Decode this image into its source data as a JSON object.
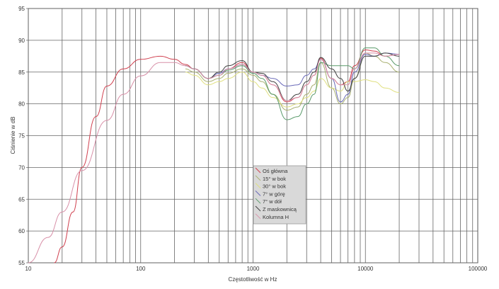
{
  "chart_data": {
    "type": "line",
    "xlabel": "Częstotliwość w Hz",
    "ylabel": "Ciśnienie w dB",
    "x_scale": "log",
    "xlim": [
      10,
      100000
    ],
    "ylim": [
      55,
      95
    ],
    "x_ticks": [
      "10",
      "100",
      "1000",
      "10000",
      "100000"
    ],
    "y_ticks": [
      "55",
      "60",
      "65",
      "70",
      "75",
      "80",
      "85",
      "90",
      "95"
    ],
    "grid": true,
    "legend_placement": "center",
    "series": [
      {
        "name": "Oś główna",
        "color": "#d0404f",
        "x": [
          17,
          20,
          25,
          30,
          40,
          50,
          70,
          100,
          150,
          200,
          250,
          300,
          400,
          500,
          600,
          800,
          1000,
          1200,
          1500,
          2000,
          2500,
          3000,
          3500,
          4000,
          5000,
          6000,
          7000,
          8000,
          10000,
          12000,
          15000,
          20000
        ],
        "y": [
          55,
          57.5,
          63,
          70,
          78,
          82.8,
          85.5,
          87,
          87.5,
          87,
          86.2,
          85.5,
          84,
          84.5,
          85.5,
          86.5,
          85,
          84.5,
          83,
          80.3,
          81,
          83,
          84.5,
          87.2,
          84,
          83,
          83.5,
          86,
          88.5,
          88.3,
          87.5,
          87.8
        ]
      },
      {
        "name": "15° w bok",
        "color": "#a8b070",
        "x": [
          250,
          300,
          400,
          500,
          600,
          800,
          1000,
          1200,
          1500,
          2000,
          2500,
          3000,
          3500,
          4000,
          5000,
          6000,
          7000,
          8000,
          10000,
          12000,
          15000,
          20000
        ],
        "y": [
          85.5,
          85,
          83.5,
          84,
          84.8,
          85.5,
          84.5,
          83.5,
          81.5,
          79,
          79.5,
          81.5,
          83,
          86.5,
          82.5,
          80,
          81,
          84,
          88,
          87.5,
          86.5,
          85
        ]
      },
      {
        "name": "30° w bok",
        "color": "#e0e080",
        "x": [
          250,
          300,
          400,
          500,
          600,
          800,
          1000,
          1200,
          1500,
          2000,
          2500,
          3000,
          3500,
          4000,
          5000,
          6000,
          7000,
          8000,
          10000,
          12000,
          15000,
          20000
        ],
        "y": [
          85,
          84.5,
          83,
          83.5,
          84,
          85,
          83.5,
          82.5,
          81,
          79.5,
          80,
          81,
          82,
          84,
          82.5,
          82,
          83.5,
          83.5,
          83.8,
          83.5,
          82.5,
          81.8
        ]
      },
      {
        "name": "7° w górę",
        "color": "#6a6ab8",
        "x": [
          250,
          300,
          400,
          500,
          600,
          800,
          1000,
          1200,
          1500,
          2000,
          2500,
          3000,
          3500,
          4000,
          5000,
          6000,
          7000,
          8000,
          10000,
          12000,
          15000,
          20000
        ],
        "y": [
          86,
          85.5,
          84,
          84.8,
          85.5,
          86.2,
          85,
          84.5,
          84,
          82.8,
          83,
          84.5,
          85.5,
          87,
          84,
          80.3,
          81.5,
          85,
          87.8,
          87.5,
          88,
          87.8
        ]
      },
      {
        "name": "7° w dół",
        "color": "#5a9a6a",
        "x": [
          250,
          300,
          400,
          500,
          600,
          800,
          1000,
          1200,
          1500,
          2000,
          2500,
          3000,
          3500,
          4000,
          5000,
          6000,
          7000,
          8000,
          10000,
          12000,
          15000,
          20000
        ],
        "y": [
          86,
          85.5,
          84,
          84.5,
          85.3,
          86,
          84.8,
          84,
          81.5,
          77.5,
          78,
          80,
          81.5,
          86.5,
          86,
          86,
          86,
          85.5,
          88.8,
          88.8,
          87.5,
          86
        ]
      },
      {
        "name": "Z maskownicą",
        "color": "#404040",
        "x": [
          250,
          300,
          400,
          500,
          600,
          800,
          1000,
          1200,
          1500,
          2000,
          2500,
          3000,
          3500,
          4000,
          5000,
          6000,
          7000,
          8000,
          10000,
          12000,
          15000,
          20000
        ],
        "y": [
          86,
          85.5,
          84,
          85,
          86,
          86.8,
          85,
          84.8,
          83.5,
          80.5,
          81.5,
          83.5,
          85,
          87.3,
          85.5,
          84,
          82,
          84,
          87.5,
          87.5,
          88,
          87.5
        ]
      },
      {
        "name": "Kolumna H",
        "color": "#d890a8",
        "x": [
          10,
          15,
          20,
          30,
          50,
          70,
          100,
          150,
          200,
          250,
          300,
          400,
          500,
          600,
          800,
          1000,
          1200,
          1500,
          2000,
          2500,
          3000,
          3500,
          4000,
          5000,
          6000,
          7000,
          8000,
          10000,
          12000,
          15000,
          20000
        ],
        "y": [
          55,
          59,
          63,
          69.5,
          77.4,
          81.5,
          84.4,
          86.5,
          86.5,
          86,
          85.5,
          84,
          84.5,
          85.5,
          86.2,
          85,
          84.5,
          83,
          80.5,
          81,
          83,
          84.5,
          87,
          84,
          83,
          83,
          85.5,
          88,
          88,
          87.5,
          87.8
        ]
      }
    ]
  }
}
